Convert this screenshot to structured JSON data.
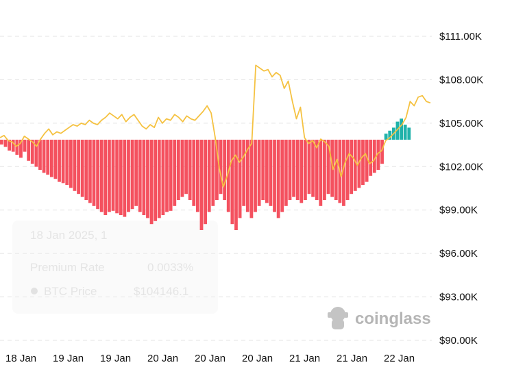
{
  "watermark": {
    "text": "coinglass"
  },
  "tooltip": {
    "date": "18 Jan 2025, 1",
    "premium_label": "Premium Rate",
    "premium_value": "0.0033%",
    "price_label": "BTC Price",
    "price_value": "$104146.1"
  },
  "chart_data": {
    "type": "bar",
    "y_axis": {
      "ticks": [
        "$111.00K",
        "$108.00K",
        "$105.00K",
        "$102.00K",
        "$99.00K",
        "$96.00K",
        "$93.00K",
        "$90.00K"
      ],
      "tick_values": [
        111000,
        108000,
        105000,
        102000,
        99000,
        96000,
        93000,
        90000
      ],
      "range": [
        90000,
        111000
      ]
    },
    "x_axis": {
      "ticks": [
        "18 Jan",
        "19 Jan",
        "19 Jan",
        "20 Jan",
        "20 Jan",
        "20 Jan",
        "21 Jan",
        "21 Jan",
        "22 Jan"
      ]
    },
    "grid": true,
    "series": [
      {
        "type": "line",
        "color": "#f5c242",
        "values": [
          104000,
          104150,
          103800,
          103700,
          103400,
          103600,
          104100,
          103900,
          103700,
          103400,
          103900,
          104300,
          104600,
          104200,
          104400,
          104300,
          104500,
          104700,
          104900,
          104800,
          105000,
          104900,
          105200,
          105000,
          104900,
          105200,
          105400,
          105700,
          105500,
          105300,
          105600,
          105100,
          105400,
          105600,
          105200,
          104800,
          104600,
          104900,
          104700,
          105400,
          105000,
          105300,
          105200,
          105600,
          105400,
          105100,
          105500,
          105300,
          105200,
          105500,
          105800,
          106200,
          105700,
          104000,
          101900,
          100600,
          101400,
          102400,
          102800,
          102300,
          102700,
          103200,
          103600,
          109000,
          108800,
          108600,
          108700,
          108200,
          108500,
          108300,
          107400,
          107900,
          106500,
          105300,
          106100,
          104000,
          103600,
          103800,
          103300,
          103900,
          103700,
          103400,
          101800,
          102500,
          101300,
          102300,
          102900,
          102600,
          102100,
          102600,
          102900,
          102200,
          102400,
          102900,
          103100,
          103800,
          104000,
          104300,
          104600,
          104900,
          105400,
          106500,
          106200,
          106800,
          106900,
          106500,
          106400
        ],
        "pixel_hint": "polyline"
      },
      {
        "type": "bar",
        "name_hint": "premium",
        "negative_color": "#f4515f",
        "positive_color": "#20b2aa",
        "values": [
          -0.008,
          -0.012,
          -0.018,
          -0.02,
          -0.025,
          -0.03,
          -0.02,
          -0.035,
          -0.04,
          -0.045,
          -0.05,
          -0.055,
          -0.058,
          -0.062,
          -0.065,
          -0.07,
          -0.072,
          -0.075,
          -0.08,
          -0.085,
          -0.09,
          -0.095,
          -0.1,
          -0.105,
          -0.11,
          -0.115,
          -0.12,
          -0.125,
          -0.12,
          -0.118,
          -0.122,
          -0.125,
          -0.128,
          -0.12,
          -0.115,
          -0.11,
          -0.12,
          -0.125,
          -0.13,
          -0.14,
          -0.135,
          -0.13,
          -0.125,
          -0.12,
          -0.118,
          -0.11,
          -0.1,
          -0.095,
          -0.09,
          -0.1,
          -0.11,
          -0.12,
          -0.15,
          -0.14,
          -0.12,
          -0.11,
          -0.1,
          -0.09,
          -0.1,
          -0.12,
          -0.14,
          -0.15,
          -0.13,
          -0.11,
          -0.12,
          -0.13,
          -0.12,
          -0.11,
          -0.1,
          -0.105,
          -0.11,
          -0.12,
          -0.13,
          -0.12,
          -0.11,
          -0.1,
          -0.095,
          -0.1,
          -0.105,
          -0.1,
          -0.09,
          -0.095,
          -0.1,
          -0.11,
          -0.1,
          -0.09,
          -0.095,
          -0.1,
          -0.105,
          -0.11,
          -0.1,
          -0.09,
          -0.085,
          -0.08,
          -0.075,
          -0.07,
          -0.06,
          -0.055,
          -0.05,
          -0.04,
          0.01,
          0.015,
          0.02,
          0.03,
          0.035,
          0.025,
          0.02
        ]
      }
    ]
  }
}
